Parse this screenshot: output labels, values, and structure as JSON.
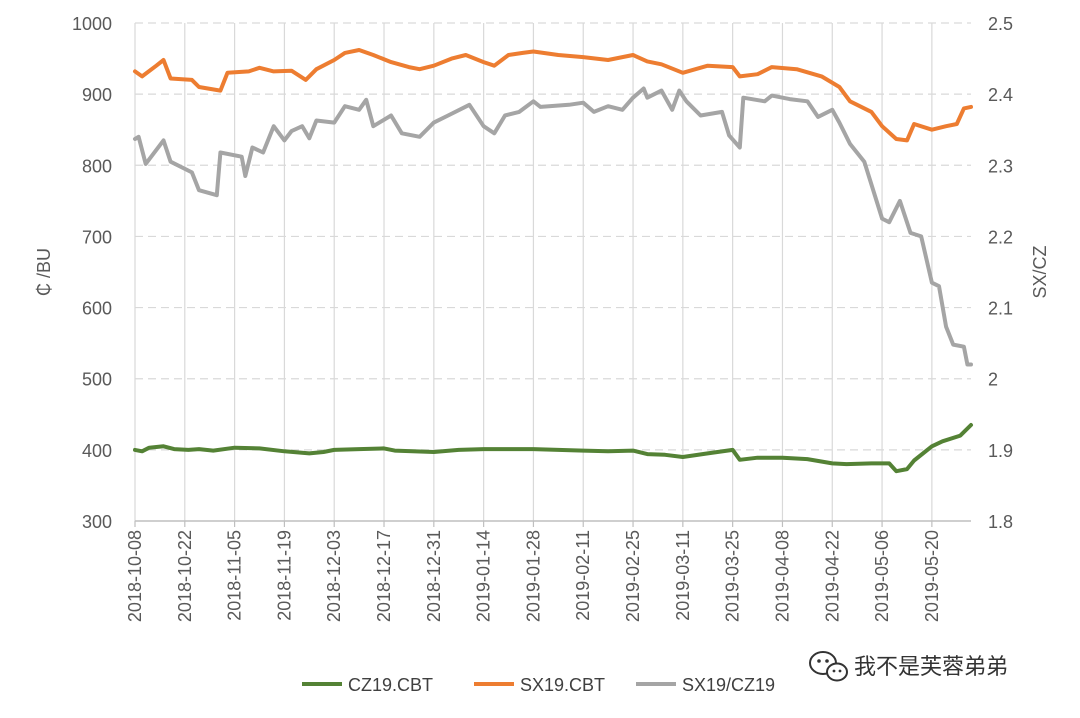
{
  "watermark": {
    "text": "我不是芙蓉弟弟",
    "icon": "wechat-icon"
  },
  "chart_data": {
    "type": "line",
    "title": "",
    "xlabel": "",
    "ylabel": "₵ /BU",
    "y2label": "SX/CZ",
    "ylim": [
      300,
      1000
    ],
    "y2lim": [
      1.8,
      2.5
    ],
    "yticks": [
      300,
      400,
      500,
      600,
      700,
      800,
      900,
      1000
    ],
    "y2ticks": [
      "1.8",
      "1.9",
      "2",
      "2.1",
      "2.2",
      "2.3",
      "2.4",
      "2.5"
    ],
    "xlim": [
      "2018-10-08",
      "2019-05-31"
    ],
    "xticks": [
      "2018-10-08",
      "2018-10-22",
      "2018-11-05",
      "2018-11-19",
      "2018-12-03",
      "2018-12-17",
      "2018-12-31",
      "2019-01-14",
      "2019-01-28",
      "2019-02-11",
      "2019-02-25",
      "2019-03-11",
      "2019-03-25",
      "2019-04-08",
      "2019-04-22",
      "2019-05-06",
      "2019-05-20"
    ],
    "grid": {
      "vertical": true,
      "horizontal_dashed": true
    },
    "legend": "bottom",
    "series": [
      {
        "name": "CZ19.CBT",
        "color": "#548235",
        "axis": "left",
        "points": [
          [
            "2018-10-08",
            400
          ],
          [
            "2018-10-10",
            398
          ],
          [
            "2018-10-12",
            403
          ],
          [
            "2018-10-16",
            405
          ],
          [
            "2018-10-19",
            401
          ],
          [
            "2018-10-23",
            400
          ],
          [
            "2018-10-26",
            401
          ],
          [
            "2018-10-30",
            399
          ],
          [
            "2018-11-05",
            403
          ],
          [
            "2018-11-12",
            402
          ],
          [
            "2018-11-19",
            398
          ],
          [
            "2018-11-26",
            395
          ],
          [
            "2018-11-30",
            397
          ],
          [
            "2018-12-03",
            400
          ],
          [
            "2018-12-10",
            401
          ],
          [
            "2018-12-17",
            402
          ],
          [
            "2018-12-20",
            399
          ],
          [
            "2018-12-31",
            397
          ],
          [
            "2019-01-07",
            400
          ],
          [
            "2019-01-14",
            401
          ],
          [
            "2019-01-21",
            401
          ],
          [
            "2019-01-28",
            401
          ],
          [
            "2019-02-04",
            400
          ],
          [
            "2019-02-11",
            399
          ],
          [
            "2019-02-18",
            398
          ],
          [
            "2019-02-25",
            399
          ],
          [
            "2019-03-01",
            394
          ],
          [
            "2019-03-06",
            393
          ],
          [
            "2019-03-11",
            390
          ],
          [
            "2019-03-18",
            395
          ],
          [
            "2019-03-25",
            400
          ],
          [
            "2019-03-27",
            386
          ],
          [
            "2019-04-01",
            389
          ],
          [
            "2019-04-08",
            389
          ],
          [
            "2019-04-15",
            387
          ],
          [
            "2019-04-22",
            381
          ],
          [
            "2019-04-26",
            380
          ],
          [
            "2019-05-03",
            381
          ],
          [
            "2019-05-08",
            381
          ],
          [
            "2019-05-10",
            370
          ],
          [
            "2019-05-13",
            373
          ],
          [
            "2019-05-15",
            385
          ],
          [
            "2019-05-20",
            405
          ],
          [
            "2019-05-23",
            412
          ],
          [
            "2019-05-28",
            420
          ],
          [
            "2019-05-31",
            435
          ]
        ]
      },
      {
        "name": "SX19.CBT",
        "color": "#ED7D31",
        "axis": "left",
        "points": [
          [
            "2018-10-08",
            932
          ],
          [
            "2018-10-10",
            925
          ],
          [
            "2018-10-14",
            940
          ],
          [
            "2018-10-16",
            948
          ],
          [
            "2018-10-18",
            922
          ],
          [
            "2018-10-24",
            920
          ],
          [
            "2018-10-26",
            910
          ],
          [
            "2018-11-01",
            905
          ],
          [
            "2018-11-03",
            930
          ],
          [
            "2018-11-09",
            932
          ],
          [
            "2018-11-12",
            937
          ],
          [
            "2018-11-16",
            932
          ],
          [
            "2018-11-21",
            933
          ],
          [
            "2018-11-25",
            920
          ],
          [
            "2018-11-28",
            935
          ],
          [
            "2018-12-03",
            948
          ],
          [
            "2018-12-06",
            958
          ],
          [
            "2018-12-10",
            962
          ],
          [
            "2018-12-14",
            955
          ],
          [
            "2018-12-19",
            945
          ],
          [
            "2018-12-24",
            938
          ],
          [
            "2018-12-27",
            935
          ],
          [
            "2018-12-31",
            940
          ],
          [
            "2019-01-05",
            950
          ],
          [
            "2019-01-09",
            955
          ],
          [
            "2019-01-14",
            945
          ],
          [
            "2019-01-17",
            940
          ],
          [
            "2019-01-21",
            955
          ],
          [
            "2019-01-25",
            958
          ],
          [
            "2019-01-28",
            960
          ],
          [
            "2019-02-04",
            955
          ],
          [
            "2019-02-11",
            952
          ],
          [
            "2019-02-18",
            948
          ],
          [
            "2019-02-25",
            955
          ],
          [
            "2019-03-01",
            946
          ],
          [
            "2019-03-05",
            942
          ],
          [
            "2019-03-11",
            930
          ],
          [
            "2019-03-18",
            940
          ],
          [
            "2019-03-25",
            938
          ],
          [
            "2019-03-27",
            925
          ],
          [
            "2019-04-01",
            928
          ],
          [
            "2019-04-05",
            938
          ],
          [
            "2019-04-12",
            935
          ],
          [
            "2019-04-19",
            925
          ],
          [
            "2019-04-24",
            910
          ],
          [
            "2019-04-27",
            890
          ],
          [
            "2019-05-03",
            875
          ],
          [
            "2019-05-06",
            855
          ],
          [
            "2019-05-10",
            837
          ],
          [
            "2019-05-13",
            835
          ],
          [
            "2019-05-15",
            858
          ],
          [
            "2019-05-20",
            850
          ],
          [
            "2019-05-24",
            855
          ],
          [
            "2019-05-27",
            858
          ],
          [
            "2019-05-29",
            880
          ],
          [
            "2019-05-31",
            882
          ]
        ]
      },
      {
        "name": "SX19/CZ19",
        "color": "#A5A5A5",
        "axis": "right",
        "points": [
          [
            "2018-10-08",
            2.337
          ],
          [
            "2018-10-09",
            2.34
          ],
          [
            "2018-10-11",
            2.302
          ],
          [
            "2018-10-16",
            2.335
          ],
          [
            "2018-10-18",
            2.305
          ],
          [
            "2018-10-24",
            2.29
          ],
          [
            "2018-10-26",
            2.265
          ],
          [
            "2018-10-31",
            2.258
          ],
          [
            "2018-11-01",
            2.318
          ],
          [
            "2018-11-07",
            2.312
          ],
          [
            "2018-11-08",
            2.285
          ],
          [
            "2018-11-10",
            2.325
          ],
          [
            "2018-11-13",
            2.318
          ],
          [
            "2018-11-16",
            2.355
          ],
          [
            "2018-11-19",
            2.335
          ],
          [
            "2018-11-21",
            2.348
          ],
          [
            "2018-11-24",
            2.355
          ],
          [
            "2018-11-26",
            2.338
          ],
          [
            "2018-11-28",
            2.363
          ],
          [
            "2018-12-03",
            2.36
          ],
          [
            "2018-12-06",
            2.383
          ],
          [
            "2018-12-10",
            2.378
          ],
          [
            "2018-12-12",
            2.392
          ],
          [
            "2018-12-14",
            2.355
          ],
          [
            "2018-12-19",
            2.37
          ],
          [
            "2018-12-22",
            2.345
          ],
          [
            "2018-12-27",
            2.34
          ],
          [
            "2018-12-31",
            2.36
          ],
          [
            "2019-01-04",
            2.37
          ],
          [
            "2019-01-10",
            2.385
          ],
          [
            "2019-01-14",
            2.355
          ],
          [
            "2019-01-17",
            2.345
          ],
          [
            "2019-01-20",
            2.37
          ],
          [
            "2019-01-24",
            2.375
          ],
          [
            "2019-01-28",
            2.39
          ],
          [
            "2019-01-30",
            2.382
          ],
          [
            "2019-02-07",
            2.385
          ],
          [
            "2019-02-11",
            2.388
          ],
          [
            "2019-02-14",
            2.375
          ],
          [
            "2019-02-18",
            2.383
          ],
          [
            "2019-02-22",
            2.378
          ],
          [
            "2019-02-25",
            2.395
          ],
          [
            "2019-02-28",
            2.408
          ],
          [
            "2019-03-01",
            2.395
          ],
          [
            "2019-03-05",
            2.405
          ],
          [
            "2019-03-08",
            2.378
          ],
          [
            "2019-03-10",
            2.405
          ],
          [
            "2019-03-12",
            2.39
          ],
          [
            "2019-03-16",
            2.37
          ],
          [
            "2019-03-22",
            2.375
          ],
          [
            "2019-03-24",
            2.342
          ],
          [
            "2019-03-27",
            2.325
          ],
          [
            "2019-03-28",
            2.395
          ],
          [
            "2019-04-03",
            2.39
          ],
          [
            "2019-04-05",
            2.398
          ],
          [
            "2019-04-10",
            2.393
          ],
          [
            "2019-04-15",
            2.39
          ],
          [
            "2019-04-18",
            2.368
          ],
          [
            "2019-04-22",
            2.378
          ],
          [
            "2019-04-24",
            2.36
          ],
          [
            "2019-04-27",
            2.33
          ],
          [
            "2019-05-01",
            2.305
          ],
          [
            "2019-05-06",
            2.225
          ],
          [
            "2019-05-08",
            2.22
          ],
          [
            "2019-05-11",
            2.25
          ],
          [
            "2019-05-14",
            2.205
          ],
          [
            "2019-05-17",
            2.2
          ],
          [
            "2019-05-20",
            2.135
          ],
          [
            "2019-05-22",
            2.13
          ],
          [
            "2019-05-24",
            2.073
          ],
          [
            "2019-05-26",
            2.048
          ],
          [
            "2019-05-29",
            2.045
          ],
          [
            "2019-05-30",
            2.02
          ],
          [
            "2019-05-31",
            2.02
          ]
        ]
      }
    ]
  }
}
